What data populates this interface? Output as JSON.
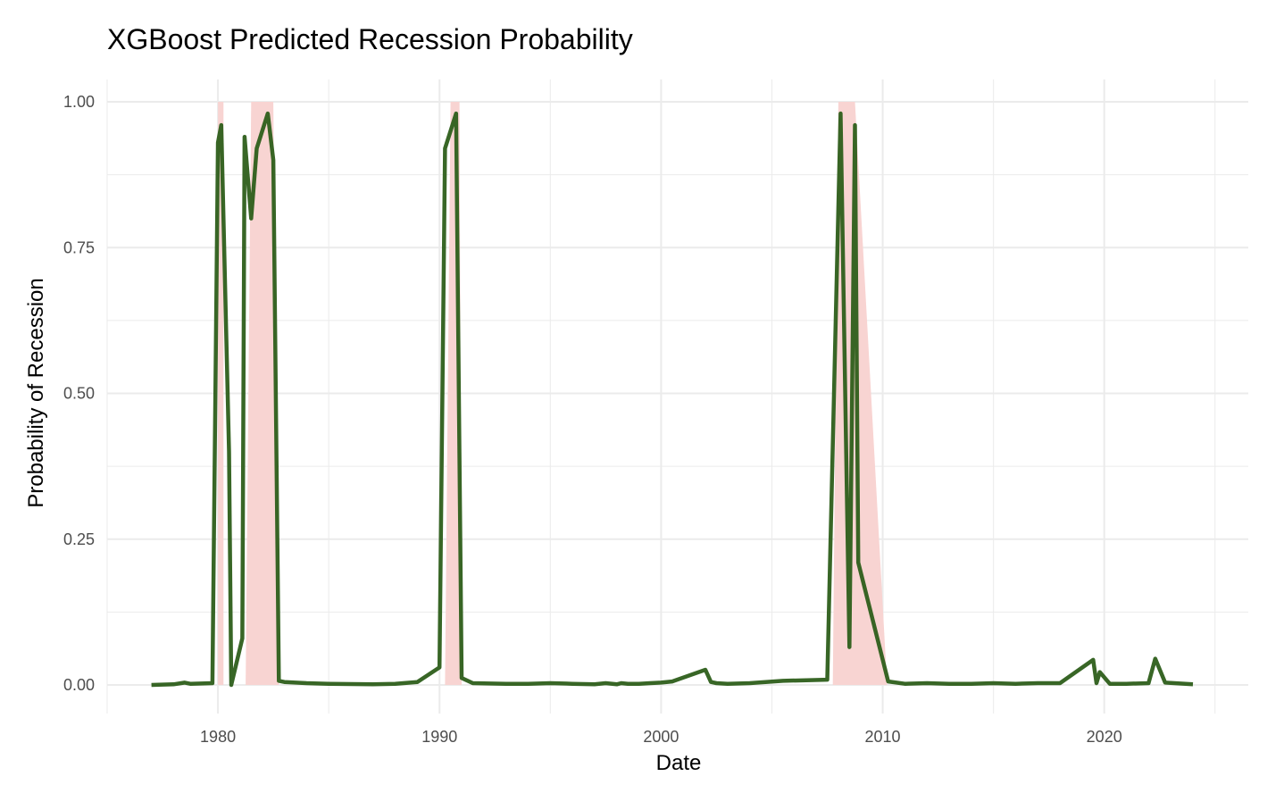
{
  "chart_data": {
    "type": "line",
    "title": "XGBoost Predicted Recession Probability",
    "xlabel": "Date",
    "ylabel": "Probability of Recession",
    "xlim": [
      1975,
      2026.5
    ],
    "ylim": [
      -0.043,
      1.0
    ],
    "x_ticks": [
      1980,
      1990,
      2000,
      2010,
      2020
    ],
    "x_tick_labels": [
      "1980",
      "1990",
      "2000",
      "2010",
      "2020"
    ],
    "y_ticks": [
      0,
      0.25,
      0.5,
      0.75,
      1.0
    ],
    "y_tick_labels": [
      "0.00",
      "0.25",
      "0.50",
      "0.75",
      "1.00"
    ],
    "grid": true,
    "colors": {
      "line": "#2d5e1a",
      "recession_fill": "#f8d4d2",
      "grid": "#ebebeb"
    },
    "recession_shading": [
      {
        "points": [
          [
            1980.0,
            1.0
          ],
          [
            1980.25,
            1.0
          ],
          [
            1980.25,
            0.0
          ],
          [
            1980.0,
            0.0
          ]
        ]
      },
      {
        "points": [
          [
            1981.25,
            0.0
          ],
          [
            1981.5,
            1.0
          ],
          [
            1982.5,
            1.0
          ],
          [
            1982.75,
            0.0
          ]
        ]
      },
      {
        "points": [
          [
            1990.25,
            0.0
          ],
          [
            1990.5,
            1.0
          ],
          [
            1990.9,
            1.0
          ],
          [
            1991.0,
            0.0
          ]
        ]
      },
      {
        "points": [
          [
            2007.75,
            0.0
          ],
          [
            2008.0,
            1.0
          ],
          [
            2008.75,
            1.0
          ],
          [
            2010.2,
            0.0
          ]
        ]
      }
    ],
    "series": [
      {
        "x": [
          1977.0,
          1978.0,
          1978.5,
          1978.75,
          1979.75,
          1980.0,
          1980.15,
          1980.5,
          1980.6,
          1981.1,
          1981.2,
          1981.5,
          1981.75,
          1982.25,
          1982.5,
          1982.75,
          1983.0,
          1984.0,
          1985.0,
          1987.0,
          1988.0,
          1989.0,
          1990.0,
          1990.25,
          1990.75,
          1991.0,
          1991.5,
          1993.0,
          1994.0,
          1995.0,
          1996.0,
          1997.0,
          1997.5,
          1998.0,
          1998.2,
          1998.5,
          1999.0,
          1999.5,
          2000.0,
          2000.5,
          2002.0,
          2002.25,
          2002.5,
          2003.0,
          2004.0,
          2005.5,
          2007.5,
          2008.1,
          2008.5,
          2008.75,
          2008.9,
          2010.25,
          2011.0,
          2012.0,
          2013.0,
          2014.0,
          2015.0,
          2016.0,
          2017.0,
          2018.0,
          2019.5,
          2019.65,
          2019.8,
          2020.25,
          2021.0,
          2022.0,
          2022.3,
          2022.75,
          2024.0
        ],
        "y": [
          0.0,
          0.001,
          0.004,
          0.002,
          0.003,
          0.93,
          0.96,
          0.4,
          0.0,
          0.08,
          0.94,
          0.8,
          0.92,
          0.98,
          0.9,
          0.007,
          0.005,
          0.003,
          0.002,
          0.001,
          0.002,
          0.005,
          0.03,
          0.92,
          0.98,
          0.012,
          0.003,
          0.002,
          0.002,
          0.003,
          0.002,
          0.001,
          0.003,
          0.001,
          0.003,
          0.002,
          0.002,
          0.003,
          0.004,
          0.006,
          0.026,
          0.005,
          0.003,
          0.002,
          0.003,
          0.007,
          0.009,
          0.98,
          0.065,
          0.96,
          0.21,
          0.006,
          0.002,
          0.003,
          0.002,
          0.002,
          0.003,
          0.002,
          0.003,
          0.003,
          0.043,
          0.003,
          0.022,
          0.002,
          0.002,
          0.003,
          0.045,
          0.004,
          0.001
        ]
      }
    ]
  }
}
